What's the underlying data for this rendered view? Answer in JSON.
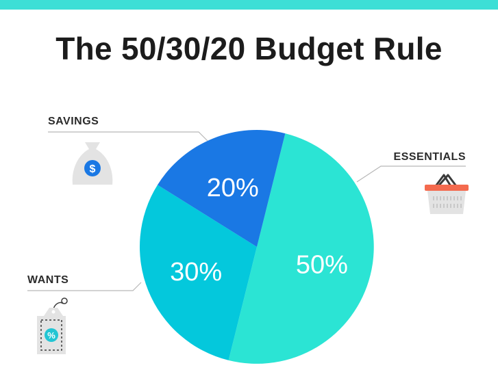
{
  "title": "The 50/30/20 Budget Rule",
  "colors": {
    "top_bar": "#3ddfd6",
    "essentials": "#2be4d4",
    "wants": "#04c8dc",
    "savings": "#1a78e4",
    "leader_line": "#b7b7b7",
    "icon_gray": "#e3e3e3",
    "icon_blue": "#1a78e4",
    "icon_teal": "#22c5d3",
    "basket_red": "#f46a4e"
  },
  "chart_data": {
    "type": "pie",
    "categories": [
      "ESSENTIALS",
      "WANTS",
      "SAVINGS"
    ],
    "values": [
      50,
      30,
      20
    ],
    "labels": [
      "50%",
      "30%",
      "20%"
    ],
    "icons": [
      "basket-icon",
      "price-tag-icon",
      "money-bag-icon"
    ]
  }
}
